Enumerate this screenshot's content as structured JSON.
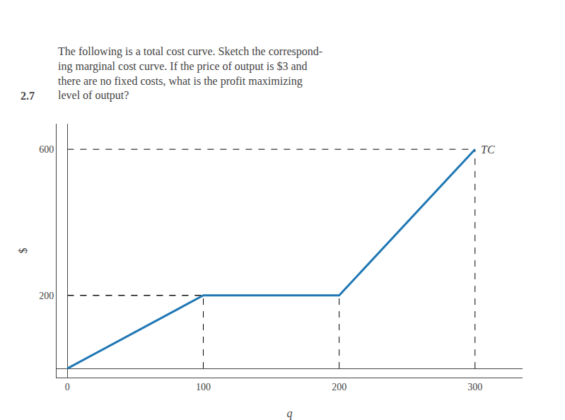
{
  "chart_data": {
    "type": "line",
    "title": "2.7",
    "subtitle": [
      "The following is a total cost curve. Sketch the correspond-",
      "ing marginal cost curve. If the price of output is $3 and",
      "there are no fixed costs, what is the profit maximizing",
      "level of output?"
    ],
    "x": [
      0,
      100,
      200,
      300
    ],
    "series": [
      {
        "name": "TC",
        "values": [
          0,
          200,
          200,
          600
        ]
      }
    ],
    "xlabel": "q",
    "ylabel": "$",
    "xlim": [
      -8,
      335
    ],
    "ylim": [
      -25,
      670
    ],
    "xticks": [
      0,
      100,
      200,
      300
    ],
    "yticks": [
      200,
      600
    ],
    "grid": false
  }
}
